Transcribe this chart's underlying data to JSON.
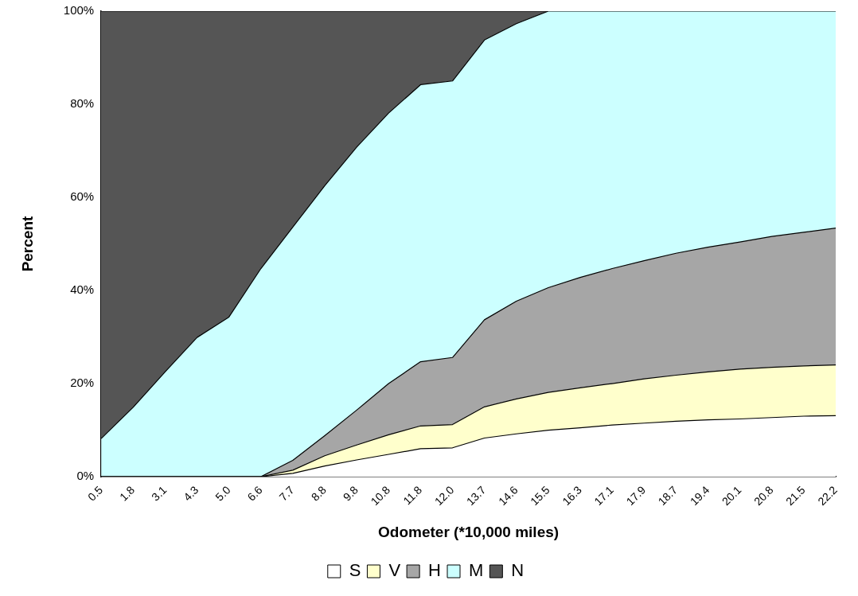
{
  "chart_data": {
    "type": "area",
    "stacked": true,
    "xlabel": "Odometer (*10,000 miles)",
    "ylabel": "Percent",
    "categories": [
      "0.5",
      "1.8",
      "3.1",
      "4.3",
      "5.0",
      "6.6",
      "7.7",
      "8.8",
      "9.8",
      "10.8",
      "11.8",
      "12.0",
      "13.7",
      "14.6",
      "15.5",
      "16.3",
      "17.1",
      "17.9",
      "18.7",
      "19.4",
      "20.1",
      "20.8",
      "21.5",
      "22.2"
    ],
    "series": [
      {
        "name": "S",
        "color": "#ffffff",
        "values": [
          0,
          0,
          0,
          0,
          0,
          0,
          0.7,
          2.3,
          3.6,
          4.8,
          6.0,
          6.2,
          8.3,
          9.2,
          10.0,
          10.5,
          11.1,
          11.5,
          11.9,
          12.2,
          12.4,
          12.7,
          13.0,
          13.1
        ]
      },
      {
        "name": "V",
        "color": "#ffffcc",
        "values": [
          0,
          0,
          0,
          0,
          0,
          0,
          0.7,
          2.2,
          3.2,
          4.2,
          4.9,
          5.0,
          6.7,
          7.5,
          8.1,
          8.6,
          8.9,
          9.5,
          9.9,
          10.3,
          10.7,
          10.8,
          10.8,
          10.9
        ]
      },
      {
        "name": "H",
        "color": "#a6a6a6",
        "values": [
          0,
          0,
          0,
          0,
          0,
          0,
          2.1,
          4.3,
          7.5,
          11.0,
          13.8,
          14.4,
          18.7,
          21.0,
          22.5,
          23.7,
          24.7,
          25.4,
          26.2,
          26.8,
          27.3,
          28.1,
          28.7,
          29.4
        ]
      },
      {
        "name": "M",
        "color": "#ccffff",
        "values": [
          8.2,
          14.9,
          22.5,
          29.9,
          34.3,
          44.7,
          50.1,
          53.7,
          56.5,
          58.1,
          59.5,
          59.4,
          60.1,
          59.6,
          59.4,
          57.2,
          55.3,
          53.6,
          52.0,
          50.7,
          49.6,
          48.4,
          47.5,
          46.6
        ]
      },
      {
        "name": "N",
        "color": "#555555",
        "values": [
          91.8,
          85.1,
          77.5,
          70.1,
          65.7,
          55.3,
          46.4,
          37.5,
          29.2,
          21.9,
          15.8,
          15.0,
          6.2,
          2.7,
          0,
          0,
          0,
          0,
          0,
          0,
          0,
          0,
          0,
          0
        ]
      }
    ],
    "ylim": [
      0,
      100
    ],
    "yticks": [
      {
        "value": 0,
        "label": "0%"
      },
      {
        "value": 20,
        "label": "20%"
      },
      {
        "value": 40,
        "label": "40%"
      },
      {
        "value": 60,
        "label": "60%"
      },
      {
        "value": 80,
        "label": "80%"
      },
      {
        "value": 100,
        "label": "100%"
      }
    ],
    "grid": false,
    "legend": "bottom"
  }
}
